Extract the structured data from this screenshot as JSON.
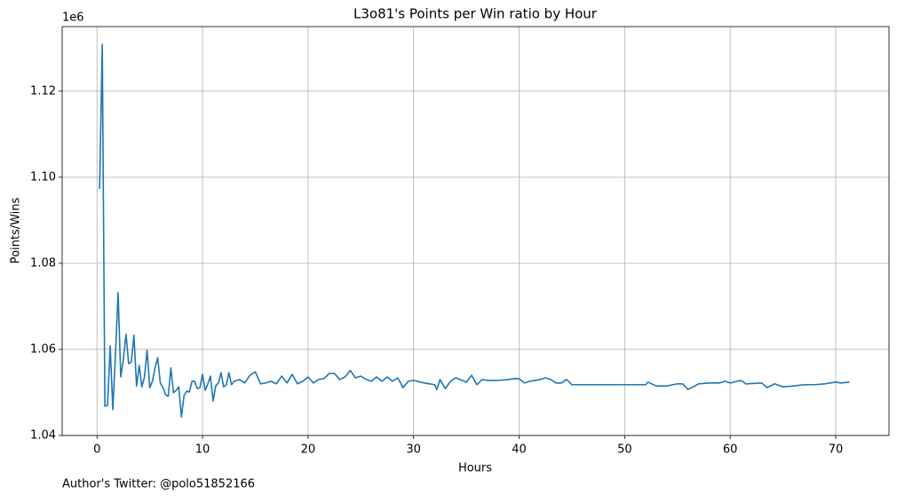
{
  "chart_data": {
    "type": "line",
    "title": "L3o81's Points per Win ratio by Hour",
    "xlabel": "Hours",
    "ylabel": "Points/Wins",
    "y_offset_label": "1e6",
    "annotation": "Author's Twitter: @polo51852166",
    "color": "#1f77b4",
    "grid": true,
    "xlim": [
      -3.3,
      75.05
    ],
    "ylim": [
      1.04,
      1.135
    ],
    "xticks": [
      0,
      10,
      20,
      30,
      40,
      50,
      60,
      70
    ],
    "yticks": [
      1.04,
      1.06,
      1.08,
      {
        "value": 1.1,
        "label": "1.10"
      },
      1.12
    ],
    "x": [
      0.25,
      0.5,
      0.75,
      1,
      1.25,
      1.5,
      1.75,
      2,
      2.25,
      2.5,
      2.75,
      3,
      3.25,
      3.5,
      3.75,
      4,
      4.25,
      4.5,
      4.75,
      5,
      5.25,
      5.5,
      5.75,
      6,
      6.25,
      6.5,
      6.75,
      7,
      7.25,
      7.5,
      7.75,
      8,
      8.25,
      8.5,
      8.75,
      9,
      9.25,
      9.5,
      9.75,
      10,
      10.25,
      10.5,
      10.75,
      11,
      11.25,
      11.5,
      11.75,
      12,
      12.25,
      12.5,
      12.75,
      13,
      13.5,
      14,
      14.5,
      15,
      15.5,
      16,
      16.5,
      17,
      17.5,
      18,
      18.5,
      19,
      19.5,
      20,
      20.5,
      21,
      21.5,
      22,
      22.5,
      23,
      23.5,
      24,
      24.5,
      25,
      25.5,
      26,
      26.5,
      27,
      27.5,
      28,
      28.5,
      29,
      29.5,
      30,
      31,
      32,
      32.2,
      32.5,
      33,
      33.5,
      34,
      35,
      35.5,
      36,
      36.5,
      37,
      38,
      39,
      39.5,
      40,
      40.5,
      41,
      42,
      42.5,
      43,
      43.5,
      44,
      44.5,
      45,
      52,
      52.2,
      53,
      54,
      55,
      55.5,
      56,
      56.5,
      57,
      58,
      59,
      59.5,
      60,
      61,
      61.5,
      63,
      63.5,
      64.2,
      65,
      66,
      67,
      68,
      69,
      70,
      70.5,
      71.3
    ],
    "values": [
      1.0973,
      1.1309,
      1.0468,
      1.047,
      1.0608,
      1.046,
      1.0588,
      1.0732,
      1.0536,
      1.0577,
      1.0635,
      1.0567,
      1.0571,
      1.0633,
      1.0515,
      1.0563,
      1.0513,
      1.0536,
      1.0598,
      1.0511,
      1.0526,
      1.0557,
      1.0581,
      1.0522,
      1.0511,
      1.0495,
      1.0491,
      1.0557,
      1.0499,
      1.0505,
      1.0513,
      1.0443,
      1.0493,
      1.0503,
      1.0501,
      1.0526,
      1.0526,
      1.0509,
      1.0511,
      1.0542,
      1.0505,
      1.052,
      1.0538,
      1.048,
      1.0515,
      1.0522,
      1.0546,
      1.0513,
      1.0518,
      1.0546,
      1.0518,
      1.0526,
      1.053,
      1.0522,
      1.054,
      1.0548,
      1.052,
      1.0522,
      1.0526,
      1.052,
      1.0538,
      1.0522,
      1.0542,
      1.052,
      1.0526,
      1.0536,
      1.0522,
      1.053,
      1.0532,
      1.0544,
      1.0544,
      1.053,
      1.0536,
      1.0551,
      1.0534,
      1.0538,
      1.053,
      1.0526,
      1.0536,
      1.0526,
      1.0536,
      1.0526,
      1.0534,
      1.0511,
      1.0526,
      1.0528,
      1.0522,
      1.0518,
      1.0507,
      1.053,
      1.0509,
      1.0526,
      1.0534,
      1.0524,
      1.054,
      1.0518,
      1.053,
      1.0528,
      1.0528,
      1.053,
      1.0532,
      1.0532,
      1.0522,
      1.0526,
      1.053,
      1.0534,
      1.053,
      1.0522,
      1.0522,
      1.053,
      1.0518,
      1.0518,
      1.0524,
      1.0515,
      1.0515,
      1.052,
      1.052,
      1.0507,
      1.0513,
      1.052,
      1.0522,
      1.0522,
      1.0526,
      1.0522,
      1.0528,
      1.052,
      1.0522,
      1.0511,
      1.052,
      1.0513,
      1.0515,
      1.0518,
      1.0518,
      1.052,
      1.0524,
      1.0522,
      1.0524
    ]
  }
}
